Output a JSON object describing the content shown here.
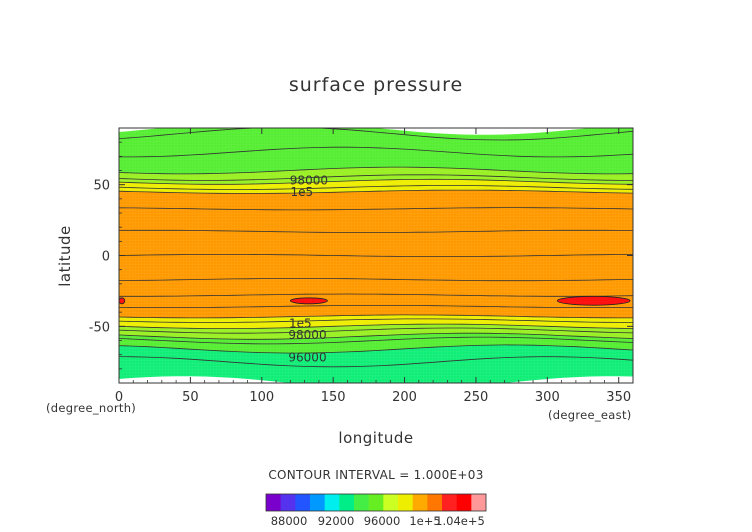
{
  "chart_data": {
    "type": "contour",
    "title": "surface pressure",
    "xlabel": "longitude",
    "ylabel": "latitude",
    "x_unit": "(degree_east)",
    "y_unit": "(degree_north)",
    "xlim": [
      0,
      360
    ],
    "ylim": [
      -90,
      90
    ],
    "x_ticks": [
      "0",
      "50",
      "100",
      "150",
      "200",
      "250",
      "300",
      "350"
    ],
    "y_ticks": [
      "50",
      "0",
      "-50"
    ],
    "contour_interval_text": "CONTOUR INTERVAL = 1.000E+03",
    "bands": [
      {
        "from_lat": -90,
        "to_lat": -66,
        "level": "96000"
      },
      {
        "from_lat": -66,
        "to_lat": -57,
        "level": "97000"
      },
      {
        "from_lat": -57,
        "to_lat": -50,
        "level": "98000"
      },
      {
        "from_lat": -50,
        "to_lat": -43,
        "level": "99000"
      },
      {
        "from_lat": -43,
        "to_lat": 45,
        "level": "1e+5"
      },
      {
        "from_lat": 45,
        "to_lat": 52,
        "level": "99000"
      },
      {
        "from_lat": 52,
        "to_lat": 60,
        "level": "98000"
      },
      {
        "from_lat": 60,
        "to_lat": 90,
        "level": "97000"
      }
    ],
    "contour_lines_lat": [
      -75,
      -66,
      -60,
      -57,
      -53,
      -50,
      -46,
      -43,
      -36,
      -28,
      -17,
      0,
      17,
      33,
      45,
      48,
      52,
      55,
      60,
      73,
      86
    ],
    "high_regions": [
      {
        "lon_min": 0,
        "lon_max": 4,
        "lat": -32
      },
      {
        "lon_min": 120,
        "lon_max": 146,
        "lat": -32
      },
      {
        "lon_min": 307,
        "lon_max": 358,
        "lat": -32
      }
    ],
    "contour_labels": [
      {
        "text": "98000",
        "lon": 133,
        "lat": 53
      },
      {
        "text": "1e5",
        "lon": 128,
        "lat": 45
      },
      {
        "text": "1e5",
        "lon": 127,
        "lat": -48
      },
      {
        "text": "98000",
        "lon": 132,
        "lat": -56
      },
      {
        "text": "96000",
        "lon": 132,
        "lat": -72
      }
    ],
    "colorbar": {
      "colors": [
        "#7a00cc",
        "#5533ee",
        "#2255ff",
        "#0099ff",
        "#00eeee",
        "#00ee88",
        "#44ee44",
        "#66ee22",
        "#ccff22",
        "#eeee00",
        "#ffaa00",
        "#ff7700",
        "#ff2020",
        "#ff0000",
        "#ff9999"
      ],
      "labels": [
        "88000",
        "92000",
        "96000",
        "1e+5",
        "1.04e+5"
      ]
    }
  }
}
